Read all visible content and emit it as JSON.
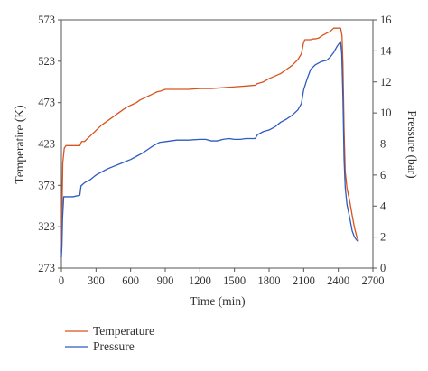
{
  "chart_data": {
    "type": "line",
    "title": "",
    "xlabel": "Time (min)",
    "ylabel": "Temperatire (K)",
    "y2label": "Pressure (bar)",
    "xlim": [
      0,
      2700
    ],
    "ylim": [
      273,
      573
    ],
    "y2lim": [
      0,
      16
    ],
    "xticks": [
      0,
      300,
      600,
      900,
      1200,
      1500,
      1800,
      2100,
      2400,
      2700
    ],
    "yticks": [
      273,
      323,
      373,
      423,
      473,
      523,
      573
    ],
    "y2ticks": [
      0,
      2,
      4,
      6,
      8,
      10,
      12,
      14,
      16
    ],
    "grid": false,
    "legend_position": "bottom-left",
    "series": [
      {
        "name": "Temperature",
        "axis": "left",
        "color": "#d9531e",
        "points": [
          [
            0,
            292
          ],
          [
            5,
            340
          ],
          [
            12,
            400
          ],
          [
            25,
            418
          ],
          [
            40,
            421
          ],
          [
            90,
            421
          ],
          [
            160,
            421
          ],
          [
            175,
            426
          ],
          [
            200,
            426
          ],
          [
            230,
            430
          ],
          [
            260,
            434
          ],
          [
            290,
            438
          ],
          [
            320,
            442
          ],
          [
            350,
            446
          ],
          [
            380,
            449
          ],
          [
            410,
            452
          ],
          [
            440,
            455
          ],
          [
            470,
            458
          ],
          [
            500,
            461
          ],
          [
            530,
            464
          ],
          [
            560,
            467
          ],
          [
            590,
            469
          ],
          [
            620,
            471
          ],
          [
            650,
            473
          ],
          [
            680,
            476
          ],
          [
            710,
            478
          ],
          [
            740,
            480
          ],
          [
            770,
            482
          ],
          [
            800,
            484
          ],
          [
            830,
            486
          ],
          [
            860,
            487
          ],
          [
            880,
            488
          ],
          [
            900,
            489
          ],
          [
            1000,
            489
          ],
          [
            1100,
            489
          ],
          [
            1200,
            490
          ],
          [
            1300,
            490
          ],
          [
            1400,
            491
          ],
          [
            1500,
            492
          ],
          [
            1600,
            493
          ],
          [
            1680,
            494
          ],
          [
            1700,
            496
          ],
          [
            1750,
            498
          ],
          [
            1800,
            502
          ],
          [
            1850,
            505
          ],
          [
            1900,
            508
          ],
          [
            1950,
            513
          ],
          [
            2000,
            518
          ],
          [
            2050,
            525
          ],
          [
            2080,
            532
          ],
          [
            2100,
            546
          ],
          [
            2110,
            549
          ],
          [
            2160,
            549
          ],
          [
            2180,
            550
          ],
          [
            2200,
            550
          ],
          [
            2230,
            551
          ],
          [
            2260,
            554
          ],
          [
            2300,
            557
          ],
          [
            2330,
            559
          ],
          [
            2360,
            563
          ],
          [
            2380,
            563
          ],
          [
            2400,
            563
          ],
          [
            2420,
            563
          ],
          [
            2432,
            554
          ],
          [
            2440,
            520
          ],
          [
            2450,
            440
          ],
          [
            2460,
            390
          ],
          [
            2475,
            370
          ],
          [
            2500,
            353
          ],
          [
            2520,
            337
          ],
          [
            2540,
            322
          ],
          [
            2560,
            311
          ],
          [
            2575,
            306
          ]
        ]
      },
      {
        "name": "Pressure",
        "axis": "right",
        "color": "#2e5bbf",
        "points": [
          [
            0,
            0.7
          ],
          [
            5,
            1.5
          ],
          [
            10,
            3.2
          ],
          [
            20,
            4.6
          ],
          [
            60,
            4.6
          ],
          [
            100,
            4.6
          ],
          [
            160,
            4.7
          ],
          [
            170,
            5.3
          ],
          [
            200,
            5.5
          ],
          [
            250,
            5.7
          ],
          [
            300,
            6.0
          ],
          [
            350,
            6.2
          ],
          [
            400,
            6.4
          ],
          [
            450,
            6.55
          ],
          [
            500,
            6.7
          ],
          [
            550,
            6.85
          ],
          [
            600,
            7.0
          ],
          [
            650,
            7.2
          ],
          [
            700,
            7.4
          ],
          [
            750,
            7.65
          ],
          [
            800,
            7.9
          ],
          [
            850,
            8.1
          ],
          [
            900,
            8.15
          ],
          [
            950,
            8.2
          ],
          [
            1000,
            8.25
          ],
          [
            1100,
            8.25
          ],
          [
            1200,
            8.3
          ],
          [
            1250,
            8.3
          ],
          [
            1300,
            8.2
          ],
          [
            1350,
            8.2
          ],
          [
            1400,
            8.3
          ],
          [
            1450,
            8.35
          ],
          [
            1500,
            8.3
          ],
          [
            1550,
            8.3
          ],
          [
            1600,
            8.35
          ],
          [
            1680,
            8.35
          ],
          [
            1700,
            8.6
          ],
          [
            1750,
            8.8
          ],
          [
            1800,
            8.9
          ],
          [
            1850,
            9.1
          ],
          [
            1900,
            9.4
          ],
          [
            1950,
            9.6
          ],
          [
            2000,
            9.85
          ],
          [
            2050,
            10.2
          ],
          [
            2080,
            10.6
          ],
          [
            2100,
            11.5
          ],
          [
            2130,
            12.2
          ],
          [
            2160,
            12.8
          ],
          [
            2200,
            13.1
          ],
          [
            2250,
            13.3
          ],
          [
            2300,
            13.4
          ],
          [
            2330,
            13.6
          ],
          [
            2360,
            13.9
          ],
          [
            2390,
            14.3
          ],
          [
            2410,
            14.5
          ],
          [
            2420,
            14.6
          ],
          [
            2430,
            13.8
          ],
          [
            2440,
            11.0
          ],
          [
            2450,
            7.0
          ],
          [
            2460,
            5.2
          ],
          [
            2475,
            4.1
          ],
          [
            2500,
            3.2
          ],
          [
            2520,
            2.4
          ],
          [
            2540,
            2.0
          ],
          [
            2560,
            1.8
          ],
          [
            2575,
            1.7
          ]
        ]
      }
    ]
  }
}
